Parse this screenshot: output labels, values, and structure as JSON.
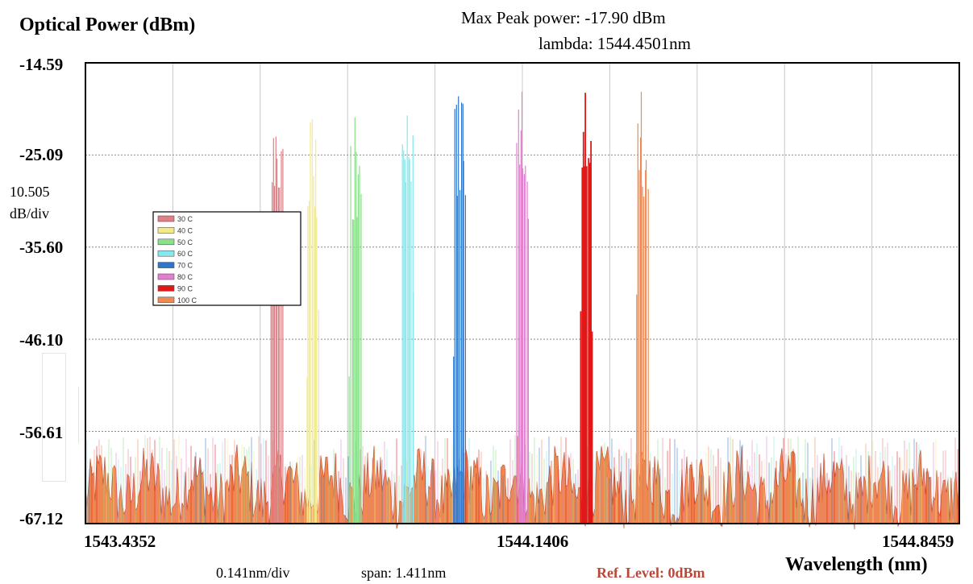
{
  "header": {
    "title": "Optical Power (dBm)",
    "max_peak": "Max Peak power: -17.90 dBm",
    "lambda": "lambda: 1544.4501nm"
  },
  "scale": {
    "line1": "10.505",
    "line2": "dB/div"
  },
  "footer": {
    "nm_per_div": "0.141nm/div",
    "span": "span: 1.411nm",
    "ref_level": "Ref. Level: 0dBm",
    "xlabel": "Wavelength (nm)"
  },
  "colors": {
    "30 C": "#e07f86",
    "40 C": "#f3ec86",
    "50 C": "#8be08b",
    "60 C": "#86e8ee",
    "70 C": "#2f76c8",
    "80 C": "#e27fcf",
    "90 C": "#e01818",
    "100 C": "#ee8a52",
    "background_noise": "#f0874e"
  },
  "chart_data": {
    "type": "line",
    "title": "",
    "ylabel": "Optical Power (dBm)",
    "xlabel": "Wavelength (nm)",
    "ylim": [
      -67.12,
      -14.59
    ],
    "xlim": [
      1543.4352,
      1544.8459
    ],
    "y_ticks": [
      "-14.59",
      "-25.09",
      "-35.60",
      "-46.10",
      "-56.61",
      "-67.12"
    ],
    "x_ticks": [
      "1543.4352",
      "1544.1406",
      "1544.8459"
    ],
    "grid": true,
    "legend_position": "upper-left",
    "noise_floor_dbm": -63,
    "series": [
      {
        "name": "30 C",
        "peak_wavelength_nm": 1543.745,
        "peak_dbm": -23.0
      },
      {
        "name": "40 C",
        "peak_wavelength_nm": 1543.803,
        "peak_dbm": -21.0
      },
      {
        "name": "50 C",
        "peak_wavelength_nm": 1543.872,
        "peak_dbm": -20.8
      },
      {
        "name": "60 C",
        "peak_wavelength_nm": 1543.957,
        "peak_dbm": -20.6
      },
      {
        "name": "70 C",
        "peak_wavelength_nm": 1544.04,
        "peak_dbm": -18.4
      },
      {
        "name": "80 C",
        "peak_wavelength_nm": 1544.142,
        "peak_dbm": -17.9
      },
      {
        "name": "90 C",
        "peak_wavelength_nm": 1544.245,
        "peak_dbm": -18.0
      },
      {
        "name": "100 C",
        "peak_wavelength_nm": 1544.335,
        "peak_dbm": -17.9
      }
    ]
  }
}
